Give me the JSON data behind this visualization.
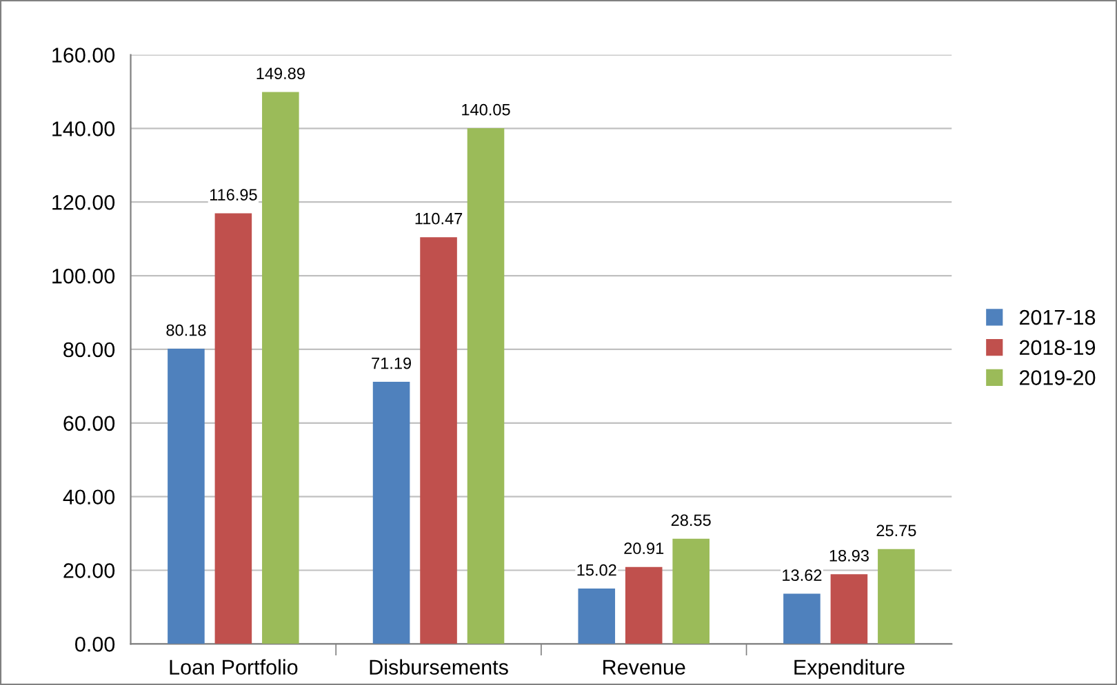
{
  "chart_data": {
    "type": "bar",
    "categories": [
      "Loan Portfolio",
      "Disbursements",
      "Revenue",
      "Expenditure"
    ],
    "series": [
      {
        "name": "2017-18",
        "color": "#4f81bd",
        "values": [
          80.18,
          71.19,
          15.02,
          13.62
        ]
      },
      {
        "name": "2018-19",
        "color": "#c0504d",
        "values": [
          116.95,
          110.47,
          20.91,
          18.93
        ]
      },
      {
        "name": "2019-20",
        "color": "#9bbb59",
        "values": [
          149.89,
          140.05,
          28.55,
          25.75
        ]
      }
    ],
    "ylim": [
      0,
      160
    ],
    "yticks": [
      {
        "value": 0,
        "label": "0.00"
      },
      {
        "value": 20,
        "label": "20.00"
      },
      {
        "value": 40,
        "label": "40.00"
      },
      {
        "value": 60,
        "label": "60.00"
      },
      {
        "value": 80,
        "label": "80.00"
      },
      {
        "value": 100,
        "label": "100.00"
      },
      {
        "value": 120,
        "label": "120.00"
      },
      {
        "value": 140,
        "label": "140.00"
      },
      {
        "value": 160,
        "label": "160.00"
      }
    ],
    "grid": "y",
    "legend": "right",
    "data_labels": true
  }
}
